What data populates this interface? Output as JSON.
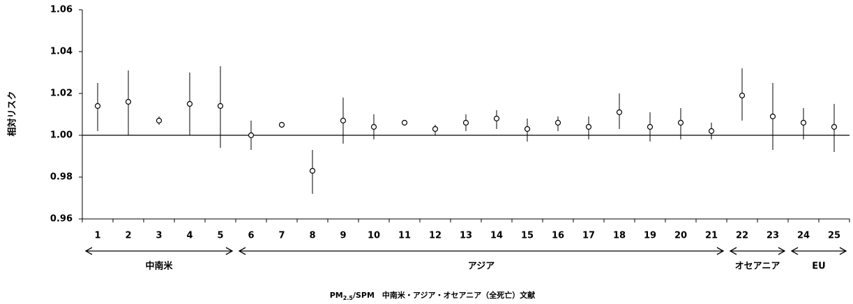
{
  "chart_data": {
    "type": "errorbar",
    "ylabel": "相対リスク",
    "xlabel": {
      "prefix": "PM",
      "subscript": "2.5",
      "suffix": "/SPM　中南米・アジア・オセアニア（全死亡）文献"
    },
    "categories": [
      "1",
      "2",
      "3",
      "4",
      "5",
      "6",
      "7",
      "8",
      "9",
      "10",
      "11",
      "12",
      "13",
      "14",
      "15",
      "16",
      "17",
      "18",
      "19",
      "20",
      "21",
      "22",
      "23",
      "24",
      "25"
    ],
    "values": [
      1.014,
      1.016,
      1.007,
      1.015,
      1.014,
      1.0,
      1.005,
      0.983,
      1.007,
      1.004,
      1.006,
      1.003,
      1.006,
      1.008,
      1.003,
      1.006,
      1.004,
      1.011,
      1.004,
      1.006,
      1.002,
      1.019,
      1.009,
      1.006,
      1.004
    ],
    "lower": [
      1.002,
      1.0,
      1.005,
      1.0,
      0.994,
      0.993,
      1.005,
      0.972,
      0.996,
      0.998,
      1.005,
      1.0,
      1.002,
      1.003,
      0.997,
      1.002,
      0.998,
      1.003,
      0.997,
      0.998,
      0.998,
      1.007,
      0.993,
      0.998,
      0.992
    ],
    "upper": [
      1.025,
      1.031,
      1.009,
      1.03,
      1.033,
      1.007,
      1.005,
      0.993,
      1.018,
      1.01,
      1.007,
      1.005,
      1.01,
      1.012,
      1.008,
      1.009,
      1.009,
      1.02,
      1.011,
      1.013,
      1.006,
      1.032,
      1.025,
      1.013,
      1.015
    ],
    "ylim": [
      0.96,
      1.06
    ],
    "yticks": [
      0.96,
      0.98,
      {
        "value": 1,
        "label": "1.00"
      },
      1.02,
      1.04,
      1.06
    ],
    "reference_line": 1,
    "groups": [
      {
        "label": "中南米",
        "size": 5
      },
      {
        "label": "アジア",
        "size": 16
      },
      {
        "label": "オセアニア",
        "size": 2
      },
      {
        "label": "EU",
        "size": 2
      }
    ]
  }
}
